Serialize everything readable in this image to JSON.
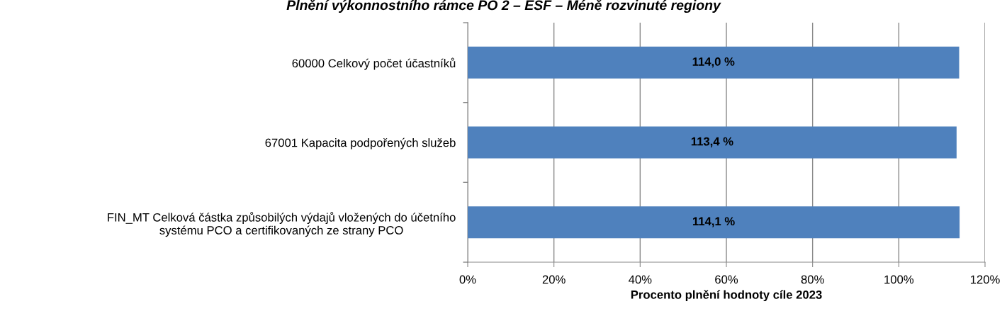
{
  "chart_data": {
    "type": "bar",
    "orientation": "horizontal",
    "title": "Plnění výkonnostního rámce PO 2 – ESF – Méně rozvinuté regiony",
    "xlabel": "Procento plnění hodnoty cíle 2023",
    "categories": [
      "60000 Celkový počet účastníků",
      "67001 Kapacita podpořených služeb",
      "FIN_MT Celková částka způsobilých výdajů vložených do účetního\nsystému PCO a certifikovaných ze strany PCO"
    ],
    "values": [
      114.0,
      113.4,
      114.1
    ],
    "value_labels": [
      "114,0 %",
      "113,4 %",
      "114,1 %"
    ],
    "color": "#4f81bd",
    "xlim": [
      0,
      120
    ],
    "xticks": [
      {
        "value": 0,
        "label": "0%"
      },
      {
        "value": 20,
        "label": "20%"
      },
      {
        "value": 40,
        "label": "40%"
      },
      {
        "value": 60,
        "label": "60%"
      },
      {
        "value": 80,
        "label": "80%"
      },
      {
        "value": 100,
        "label": "100%"
      },
      {
        "value": 120,
        "label": "120%"
      }
    ],
    "grid": "x",
    "legend": false
  }
}
